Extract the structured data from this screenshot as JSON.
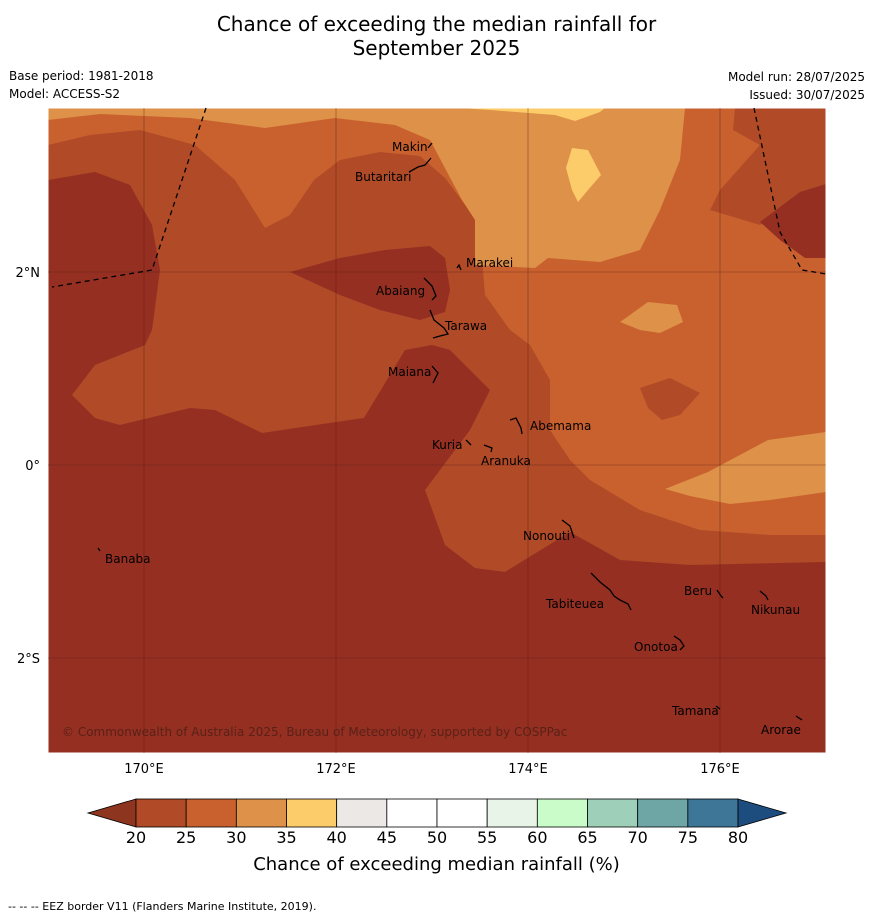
{
  "title_line1": "Chance of exceeding the median rainfall for",
  "title_line2": "September 2025",
  "meta": {
    "base_period": "Base period: 1981-2018",
    "model": "Model: ACCESS-S2",
    "model_run": "Model run: 28/07/2025",
    "issued": "Issued: 30/07/2025"
  },
  "map": {
    "x_ticks": [
      {
        "label": "170°E",
        "lon": 170
      },
      {
        "label": "172°E",
        "lon": 172
      },
      {
        "label": "174°E",
        "lon": 174
      },
      {
        "label": "176°E",
        "lon": 176
      }
    ],
    "y_ticks": [
      {
        "label": "2°N",
        "lat": 2
      },
      {
        "label": "0°",
        "lat": 0
      },
      {
        "label": "2°S",
        "lat": -2
      }
    ],
    "places": [
      {
        "name": "Makin"
      },
      {
        "name": "Butaritari"
      },
      {
        "name": "Marakei"
      },
      {
        "name": "Abaiang"
      },
      {
        "name": "Tarawa"
      },
      {
        "name": "Maiana"
      },
      {
        "name": "Abemama"
      },
      {
        "name": "Kuria"
      },
      {
        "name": "Aranuka"
      },
      {
        "name": "Nonouti"
      },
      {
        "name": "Banaba"
      },
      {
        "name": "Beru"
      },
      {
        "name": "Nikunau"
      },
      {
        "name": "Tabiteuea"
      },
      {
        "name": "Onotoa"
      },
      {
        "name": "Tamana"
      },
      {
        "name": "Arorae"
      }
    ],
    "copyright": "© Commonwealth of Australia 2025, Bureau of Meteorology, supported by COSPPac"
  },
  "colorbar": {
    "ticks": [
      "20",
      "25",
      "30",
      "35",
      "40",
      "45",
      "50",
      "55",
      "60",
      "65",
      "70",
      "75",
      "80"
    ],
    "colors": [
      "#b14a27",
      "#c9612f",
      "#de9148",
      "#fdcc6a",
      "#ebe8e5",
      "#ffffff",
      "#ffffff",
      "#e9f4e8",
      "#c9fcc8",
      "#9ecfb8",
      "#6ea6a6",
      "#3d7697"
    ],
    "low_color": "#8e3520",
    "high_color": "#1d4c7e",
    "title": "Chance of exceeding median rainfall (%)"
  },
  "footnote": "--  --  -- EEZ border V11 (Flanders Marine Institute, 2019)."
}
